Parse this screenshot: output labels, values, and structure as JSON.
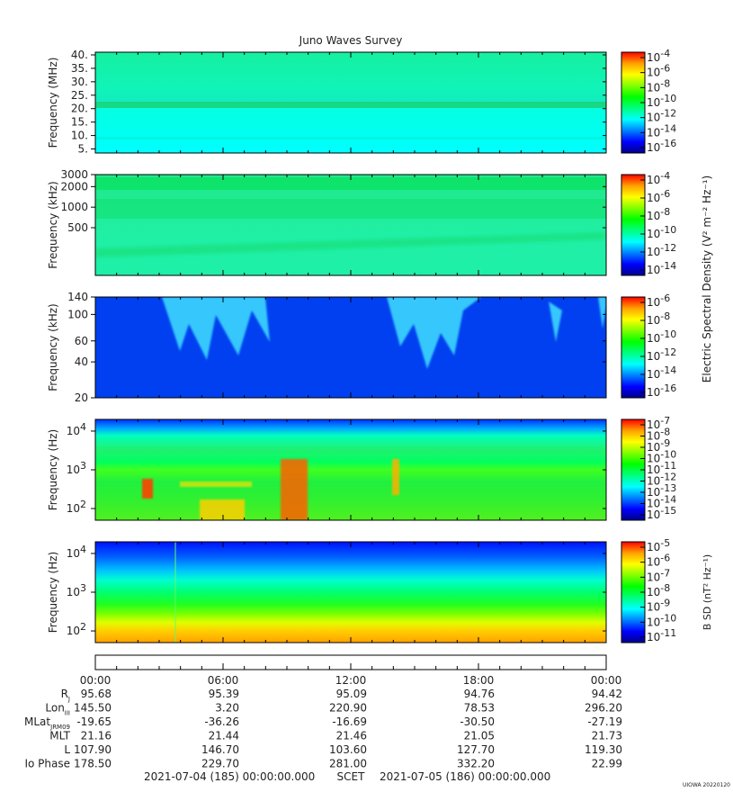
{
  "title": "Juno Waves Survey",
  "stamp": "UIOWA 20220120",
  "colormap": [
    "#00008c",
    "#0000ff",
    "#0080ff",
    "#00ffff",
    "#00ff80",
    "#00ff00",
    "#80ff00",
    "#ffff00",
    "#ffa000",
    "#ff0000"
  ],
  "chart_data": [
    {
      "type": "heatmap",
      "name": "panel-1",
      "ylabel": "Frequency (MHz)",
      "yscale": "linear",
      "ylim": [
        3.5,
        41
      ],
      "yticks": [
        5,
        10,
        15,
        20,
        25,
        30,
        35,
        40
      ],
      "yticklabels": [
        "5.",
        "10.",
        "15.",
        "20.",
        "25.",
        "30.",
        "35.",
        "40."
      ],
      "cbar_label": "",
      "cbar_ticks": [
        {
          "base": "10",
          "exp": "-4"
        },
        {
          "base": "10",
          "exp": "-6"
        },
        {
          "base": "10",
          "exp": "-8"
        },
        {
          "base": "10",
          "exp": "-10"
        },
        {
          "base": "10",
          "exp": "-12"
        },
        {
          "base": "10",
          "exp": "-14"
        },
        {
          "base": "10",
          "exp": "-16"
        }
      ]
    },
    {
      "type": "heatmap",
      "name": "panel-2",
      "ylabel": "Frequency (kHz)",
      "yscale": "log",
      "ylim": [
        100,
        3000
      ],
      "yticks": [
        500,
        1000,
        2000,
        3000
      ],
      "yticklabels": [
        "500",
        "1000",
        "2000",
        "3000"
      ],
      "cbar_label": "",
      "cbar_ticks": [
        {
          "base": "10",
          "exp": "-4"
        },
        {
          "base": "10",
          "exp": "-6"
        },
        {
          "base": "10",
          "exp": "-8"
        },
        {
          "base": "10",
          "exp": "-10"
        },
        {
          "base": "10",
          "exp": "-12"
        },
        {
          "base": "10",
          "exp": "-14"
        }
      ]
    },
    {
      "type": "heatmap",
      "name": "panel-3",
      "ylabel": "Frequency (kHz)",
      "yscale": "log",
      "ylim": [
        20,
        140
      ],
      "yticks": [
        20,
        40,
        60,
        100,
        140
      ],
      "yticklabels": [
        "20",
        "40",
        "60",
        "100",
        "140"
      ],
      "cbar_label": "",
      "cbar_ticks": [
        {
          "base": "10",
          "exp": "-6"
        },
        {
          "base": "10",
          "exp": "-8"
        },
        {
          "base": "10",
          "exp": "-10"
        },
        {
          "base": "10",
          "exp": "-12"
        },
        {
          "base": "10",
          "exp": "-14"
        },
        {
          "base": "10",
          "exp": "-16"
        }
      ]
    },
    {
      "type": "heatmap",
      "name": "panel-4",
      "ylabel": "Frequency (Hz)",
      "yscale": "log",
      "ylim": [
        50,
        20000
      ],
      "yticks": [
        100,
        1000,
        10000
      ],
      "yticklabels": [
        {
          "base": "10",
          "exp": "2"
        },
        {
          "base": "10",
          "exp": "3"
        },
        {
          "base": "10",
          "exp": "4"
        }
      ],
      "cbar_label": "",
      "cbar_ticks": [
        {
          "base": "10",
          "exp": "-7"
        },
        {
          "base": "10",
          "exp": "-8"
        },
        {
          "base": "10",
          "exp": "-9"
        },
        {
          "base": "10",
          "exp": "-10"
        },
        {
          "base": "10",
          "exp": "-11"
        },
        {
          "base": "10",
          "exp": "-12"
        },
        {
          "base": "10",
          "exp": "-13"
        },
        {
          "base": "10",
          "exp": "-14"
        },
        {
          "base": "10",
          "exp": "-15"
        }
      ]
    },
    {
      "type": "heatmap",
      "name": "panel-5",
      "ylabel": "Frequency (Hz)",
      "yscale": "log",
      "ylim": [
        50,
        20000
      ],
      "yticks": [
        100,
        1000,
        10000
      ],
      "yticklabels": [
        {
          "base": "10",
          "exp": "2"
        },
        {
          "base": "10",
          "exp": "3"
        },
        {
          "base": "10",
          "exp": "4"
        }
      ],
      "cbar_label": "B SD (nT² Hz⁻¹)",
      "cbar_ticks": [
        {
          "base": "10",
          "exp": "-5"
        },
        {
          "base": "10",
          "exp": "-6"
        },
        {
          "base": "10",
          "exp": "-7"
        },
        {
          "base": "10",
          "exp": "-8"
        },
        {
          "base": "10",
          "exp": "-9"
        },
        {
          "base": "10",
          "exp": "-10"
        },
        {
          "base": "10",
          "exp": "-11"
        }
      ]
    }
  ],
  "electric_cbar_label": "Electric Spectral Density (V² m⁻² Hz⁻¹)",
  "time_axis": {
    "ticks": [
      "00:00",
      "06:00",
      "12:00",
      "18:00",
      "00:00"
    ],
    "tick_hours": [
      0,
      6,
      12,
      18,
      24
    ]
  },
  "ephemeris": [
    {
      "label": "R",
      "sub": "J",
      "values": [
        "95.68",
        "95.39",
        "95.09",
        "94.76",
        "94.42"
      ]
    },
    {
      "label": "Lon",
      "sub": "III",
      "values": [
        "145.50",
        "3.20",
        "220.90",
        "78.53",
        "296.20"
      ]
    },
    {
      "label": "MLat",
      "sub": "JRM09",
      "values": [
        "-19.65",
        "-36.26",
        "-16.69",
        "-30.50",
        "-27.19"
      ]
    },
    {
      "label": "MLT",
      "sub": "",
      "values": [
        "21.16",
        "21.44",
        "21.46",
        "21.05",
        "21.73"
      ]
    },
    {
      "label": "L",
      "sub": "",
      "values": [
        "107.90",
        "146.70",
        "103.60",
        "127.70",
        "119.30"
      ]
    },
    {
      "label": "Io Phase",
      "sub": "",
      "values": [
        "178.50",
        "229.70",
        "281.00",
        "332.20",
        "22.99"
      ]
    }
  ],
  "footer": {
    "start": "2021-07-04 (185) 00:00:00.000",
    "scet": "SCET",
    "end": "2021-07-05 (186) 00:00:00.000"
  }
}
